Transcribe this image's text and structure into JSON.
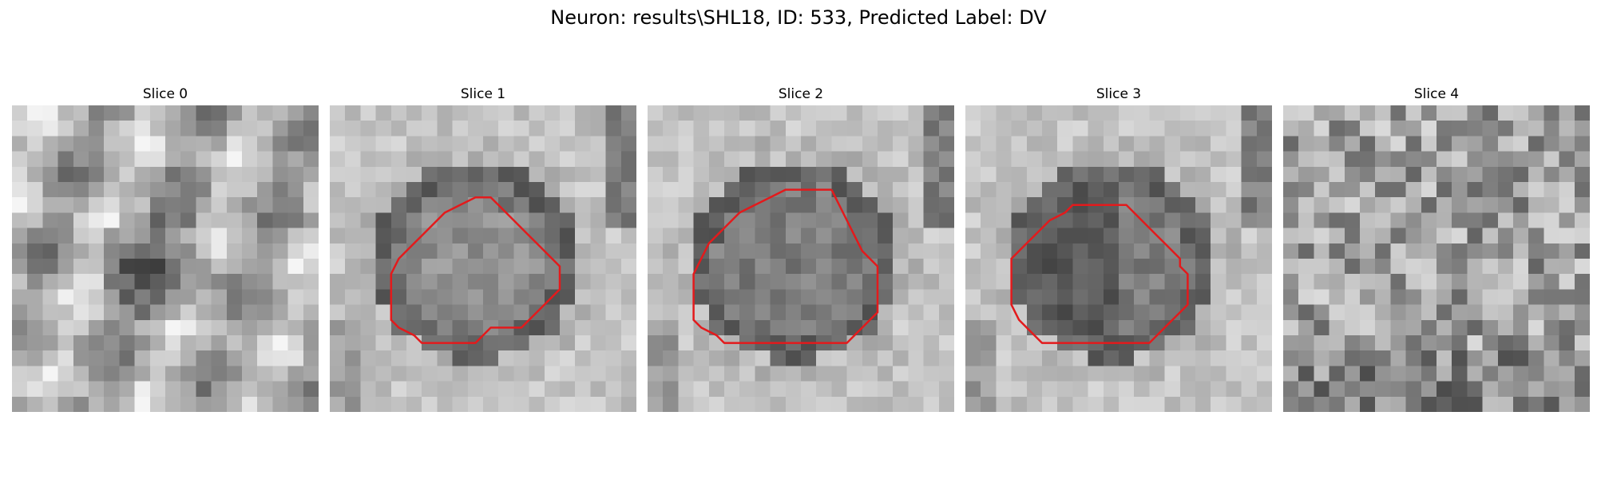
{
  "figure": {
    "title": "Neuron: results\\SHL18, ID: 533, Predicted Label: DV"
  },
  "panels": [
    {
      "title": "Slice 0",
      "has_contour": false,
      "contour": []
    },
    {
      "title": "Slice 1",
      "has_contour": true,
      "contour": [
        [
          11,
          6.5
        ],
        [
          10.5,
          6
        ],
        [
          9.5,
          6
        ],
        [
          8.5,
          6.5
        ],
        [
          7.5,
          7
        ],
        [
          7,
          7.5
        ],
        [
          6.5,
          8
        ],
        [
          6,
          8.5
        ],
        [
          5.5,
          9
        ],
        [
          5,
          9.5
        ],
        [
          4.5,
          10
        ],
        [
          4,
          11
        ],
        [
          4,
          12
        ],
        [
          4,
          13
        ],
        [
          4,
          14
        ],
        [
          4.5,
          14.5
        ],
        [
          5.5,
          15
        ],
        [
          6,
          15.5
        ],
        [
          6.5,
          15.5
        ],
        [
          7.5,
          15.5
        ],
        [
          8.5,
          15.5
        ],
        [
          9.5,
          15.5
        ],
        [
          10,
          15
        ],
        [
          10.5,
          14.5
        ],
        [
          11.5,
          14.5
        ],
        [
          12.5,
          14.5
        ],
        [
          13,
          14
        ],
        [
          13.5,
          13.5
        ],
        [
          14,
          13
        ],
        [
          14.5,
          12.5
        ],
        [
          15,
          12
        ],
        [
          15,
          11
        ],
        [
          15,
          10.5
        ],
        [
          14.5,
          10
        ],
        [
          14,
          9.5
        ],
        [
          13.5,
          9
        ],
        [
          13,
          8.5
        ],
        [
          12.5,
          8
        ],
        [
          12,
          7.5
        ],
        [
          11.5,
          7
        ],
        [
          11,
          6.5
        ]
      ]
    },
    {
      "title": "Slice 2",
      "has_contour": true,
      "contour": [
        [
          12,
          5.5
        ],
        [
          11,
          5.5
        ],
        [
          10,
          5.5
        ],
        [
          9,
          5.5
        ],
        [
          8,
          6
        ],
        [
          7,
          6.5
        ],
        [
          6,
          7
        ],
        [
          5.5,
          7.5
        ],
        [
          5,
          8
        ],
        [
          4.5,
          8.5
        ],
        [
          4,
          9
        ],
        [
          3.5,
          10
        ],
        [
          3,
          11
        ],
        [
          3,
          12
        ],
        [
          3,
          13
        ],
        [
          3,
          14
        ],
        [
          3.5,
          14.5
        ],
        [
          4.5,
          15
        ],
        [
          5,
          15.5
        ],
        [
          6,
          15.5
        ],
        [
          7,
          15.5
        ],
        [
          8,
          15.5
        ],
        [
          9,
          15.5
        ],
        [
          10,
          15.5
        ],
        [
          11,
          15.5
        ],
        [
          12,
          15.5
        ],
        [
          13,
          15.5
        ],
        [
          13.5,
          15
        ],
        [
          14,
          14.5
        ],
        [
          14.5,
          14
        ],
        [
          15,
          13.5
        ],
        [
          15,
          12.5
        ],
        [
          15,
          11.5
        ],
        [
          15,
          10.5
        ],
        [
          14.5,
          10
        ],
        [
          14,
          9.5
        ],
        [
          13.5,
          8.5
        ],
        [
          13,
          7.5
        ],
        [
          12.5,
          6.5
        ],
        [
          12,
          5.5
        ]
      ]
    },
    {
      "title": "Slice 3",
      "has_contour": true,
      "contour": [
        [
          10,
          6.5
        ],
        [
          9,
          6.5
        ],
        [
          8,
          6.5
        ],
        [
          7,
          6.5
        ],
        [
          6.5,
          7
        ],
        [
          5.5,
          7.5
        ],
        [
          5,
          8
        ],
        [
          4.5,
          8.5
        ],
        [
          4,
          9
        ],
        [
          3.5,
          9.5
        ],
        [
          3,
          10
        ],
        [
          3,
          11
        ],
        [
          3,
          12
        ],
        [
          3,
          13
        ],
        [
          3.5,
          14
        ],
        [
          4,
          14.5
        ],
        [
          4.5,
          15
        ],
        [
          5,
          15.5
        ],
        [
          6,
          15.5
        ],
        [
          7,
          15.5
        ],
        [
          8,
          15.5
        ],
        [
          9,
          15.5
        ],
        [
          10,
          15.5
        ],
        [
          11,
          15.5
        ],
        [
          12,
          15.5
        ],
        [
          12.5,
          15
        ],
        [
          13,
          14.5
        ],
        [
          13.5,
          14
        ],
        [
          14,
          13.5
        ],
        [
          14.5,
          13
        ],
        [
          14.5,
          12
        ],
        [
          14.5,
          11
        ],
        [
          14,
          10.5
        ],
        [
          14,
          10
        ],
        [
          13.5,
          9.5
        ],
        [
          13,
          9
        ],
        [
          12.5,
          8.5
        ],
        [
          12,
          8
        ],
        [
          11.5,
          7.5
        ],
        [
          11,
          7
        ],
        [
          10.5,
          6.5
        ],
        [
          10,
          6.5
        ]
      ]
    },
    {
      "title": "Slice 4",
      "has_contour": false,
      "contour": []
    }
  ],
  "colors": {
    "contour": "#e31a1c",
    "background": "#ffffff"
  }
}
